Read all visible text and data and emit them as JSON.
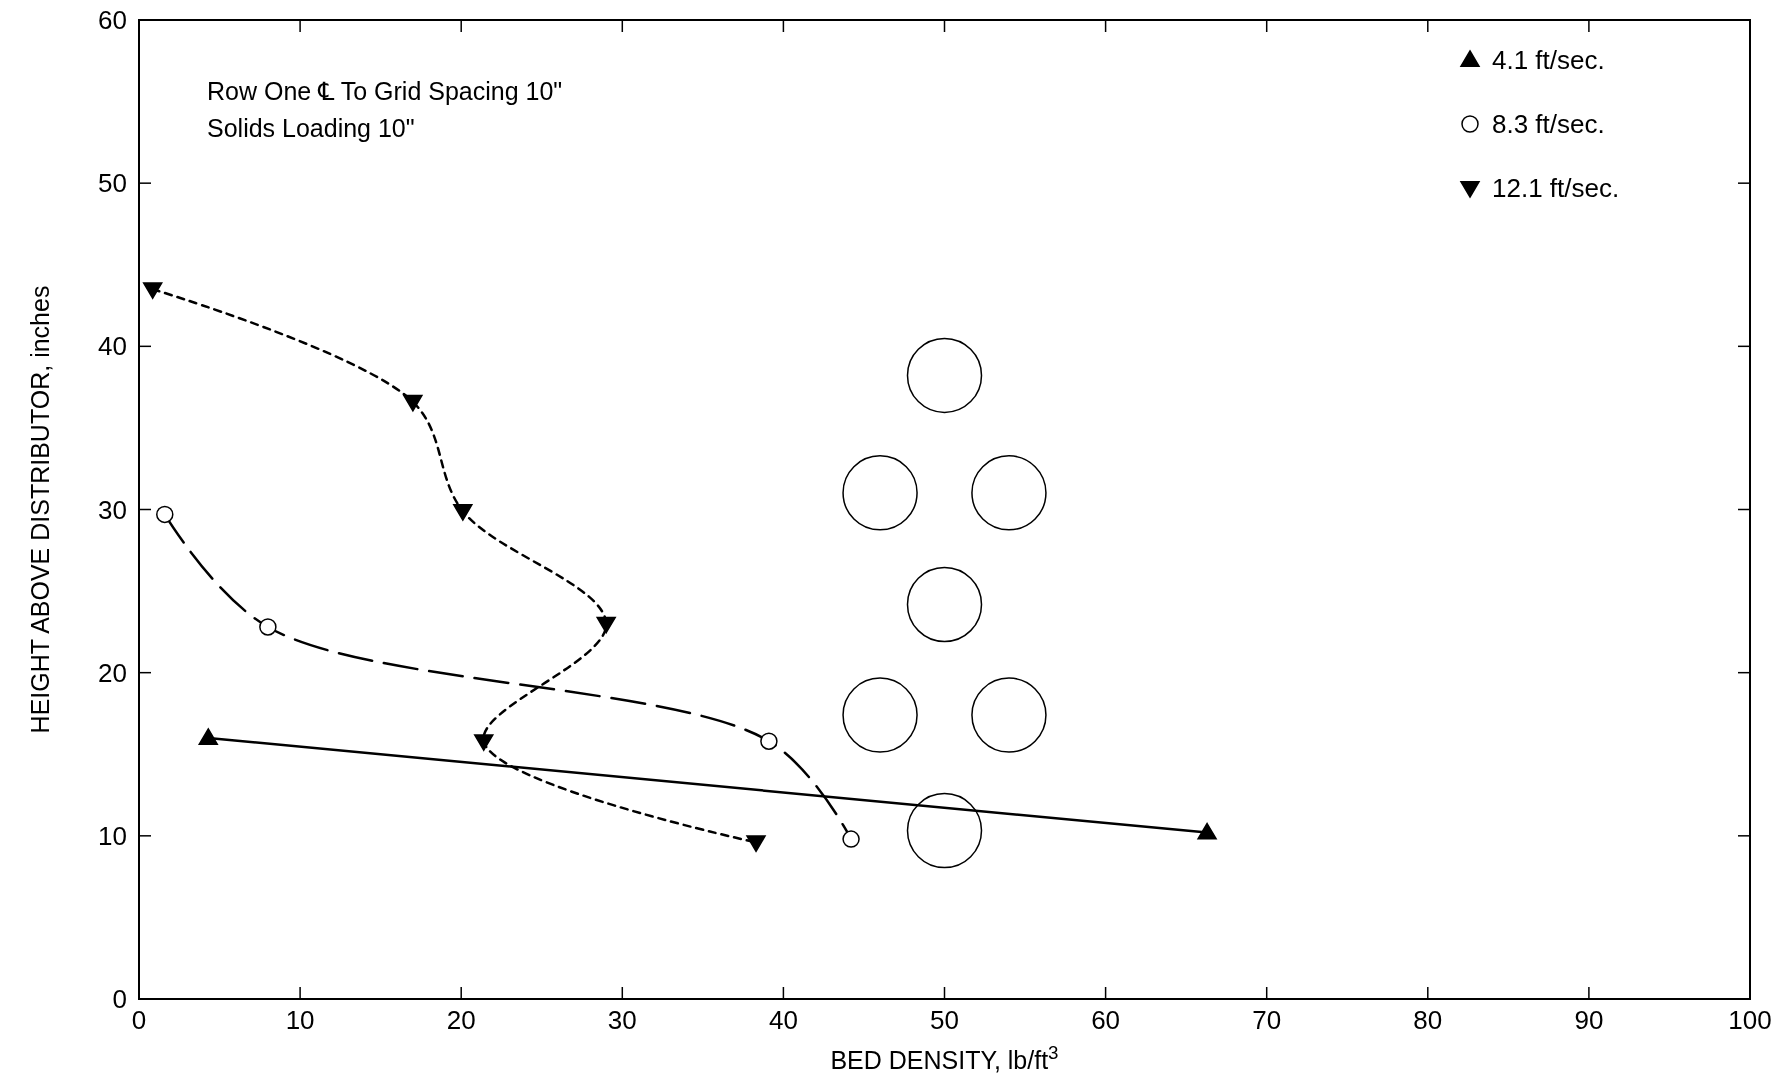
{
  "chart_data": {
    "type": "line",
    "xlabel": "BED DENSITY, lb/ft$^{3}$",
    "ylabel": "HEIGHT ABOVE DISTRIBUTOR, inches",
    "annotations": [
      "Row One ℄ To Grid Spacing 10\"",
      "Solids Loading 10\""
    ],
    "xlim": [
      0,
      100
    ],
    "xticks": [
      0,
      10,
      20,
      30,
      40,
      50,
      60,
      70,
      80,
      90,
      100
    ],
    "ylim": [
      0,
      60
    ],
    "yticks": [
      0,
      10,
      20,
      30,
      40,
      50,
      60
    ],
    "grid": false,
    "legend": "top right",
    "series": [
      {
        "name": "4.1 ft/sec.",
        "color": "#000000",
        "x": [
          4.3,
          66.3
        ],
        "values": [
          16,
          10.2
        ],
        "marker": "triangle",
        "line_style": "solid"
      },
      {
        "name": "8.3 ft/sec.",
        "color": "#000000",
        "x": [
          1.6,
          8.0,
          39.1,
          44.2
        ],
        "values": [
          29.7,
          22.8,
          15.8,
          9.8
        ],
        "marker": "circle",
        "line_style": "dashed"
      },
      {
        "name": "12.1 ft/sec.",
        "color": "#000000",
        "x": [
          0.85,
          17.0,
          20.1,
          29.0,
          21.4,
          38.3
        ],
        "values": [
          43.5,
          36.6,
          29.9,
          23.0,
          15.8,
          9.6
        ],
        "marker": "triangle-down",
        "line_style": "dotted"
      }
    ]
  }
}
